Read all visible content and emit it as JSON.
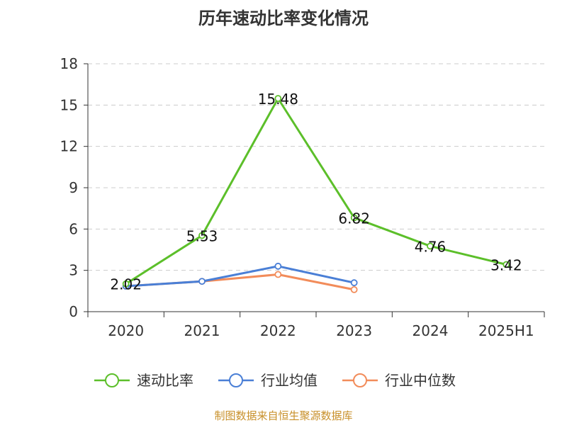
{
  "chart_data": {
    "type": "line",
    "title": "历年速动比率变化情况",
    "categories": [
      "2020",
      "2021",
      "2022",
      "2023",
      "2024",
      "2025H1"
    ],
    "series": [
      {
        "name": "速动比率",
        "color": "#5cbf2a",
        "values": [
          2.02,
          5.53,
          15.48,
          6.82,
          4.76,
          3.42
        ],
        "labels_shown": true
      },
      {
        "name": "行业均值",
        "color": "#4a7fd6",
        "values": [
          1.85,
          2.2,
          3.3,
          2.1,
          null,
          null
        ],
        "labels_shown": false
      },
      {
        "name": "行业中位数",
        "color": "#f28c5a",
        "values": [
          1.85,
          2.2,
          2.7,
          1.6,
          null,
          null
        ],
        "labels_shown": false
      }
    ],
    "y_ticks": [
      "0",
      "3",
      "6",
      "9",
      "12",
      "15",
      "18"
    ],
    "ylim": [
      0,
      18
    ],
    "grid": "horizontal dashed",
    "legend_position": "bottom"
  },
  "source_text": "制图数据来自恒生聚源数据库"
}
